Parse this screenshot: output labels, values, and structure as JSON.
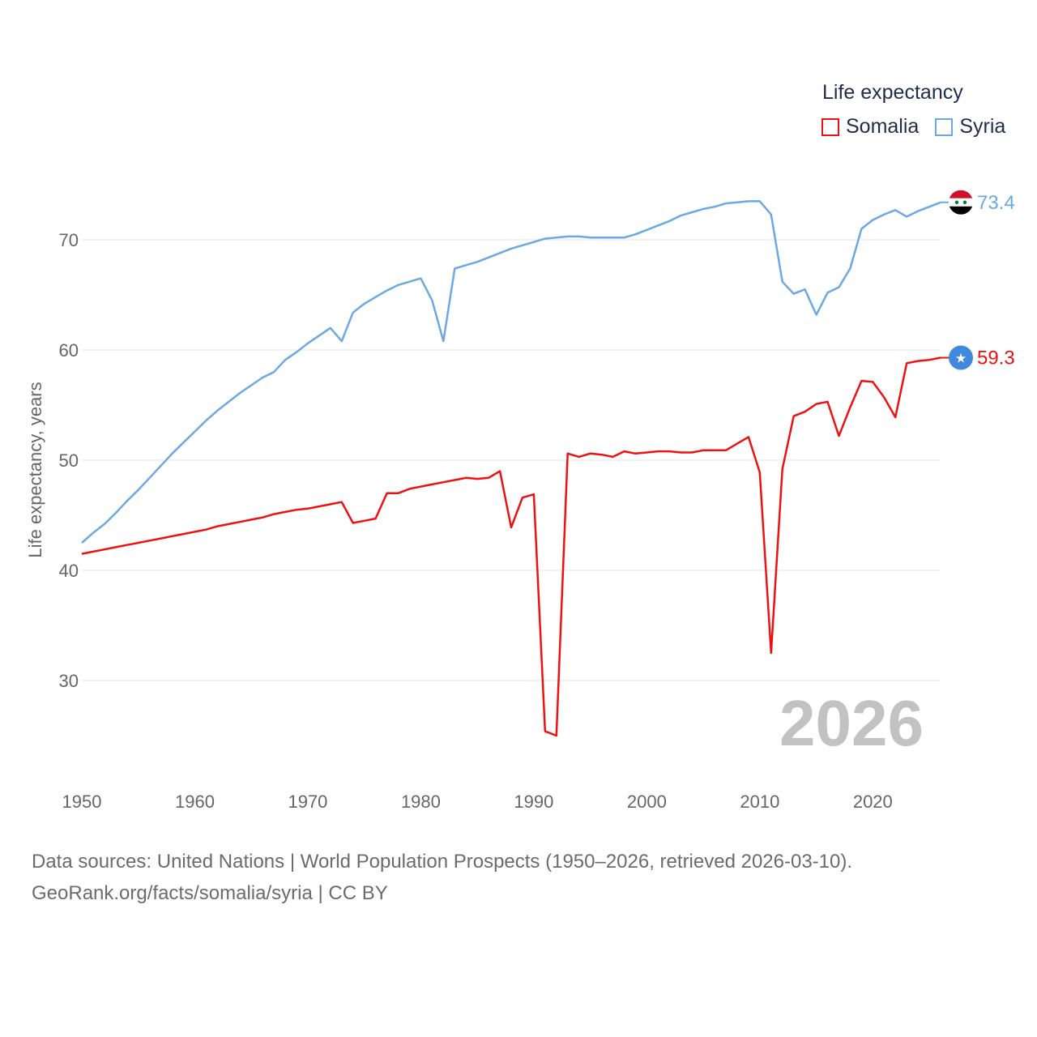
{
  "legend": {
    "title": "Life expectancy",
    "items": [
      {
        "name": "Somalia",
        "color": "#ee1111"
      },
      {
        "name": "Syria",
        "color": "#6aa9e4"
      }
    ]
  },
  "footer": {
    "line1": "Data sources: United Nations | World Population Prospects (1950–2026, retrieved 2026-03-10).",
    "line2": "GeoRank.org/facts/somalia/syria | CC BY"
  },
  "chart_data": {
    "type": "line",
    "title": "Life expectancy",
    "xlabel": "",
    "ylabel": "Life expectancy, years",
    "xlim": [
      1950,
      2026
    ],
    "ylim": [
      22,
      76
    ],
    "x_ticks": [
      1950,
      1960,
      1970,
      1980,
      1990,
      2000,
      2010,
      2020
    ],
    "y_ticks": [
      30,
      40,
      50,
      60,
      70
    ],
    "highlight_year": "2026",
    "x": [
      1950,
      1951,
      1952,
      1953,
      1954,
      1955,
      1956,
      1957,
      1958,
      1959,
      1960,
      1961,
      1962,
      1963,
      1964,
      1965,
      1966,
      1967,
      1968,
      1969,
      1970,
      1971,
      1972,
      1973,
      1974,
      1975,
      1976,
      1977,
      1978,
      1979,
      1980,
      1981,
      1982,
      1983,
      1984,
      1985,
      1986,
      1987,
      1988,
      1989,
      1990,
      1991,
      1992,
      1993,
      1994,
      1995,
      1996,
      1997,
      1998,
      1999,
      2000,
      2001,
      2002,
      2003,
      2004,
      2005,
      2006,
      2007,
      2008,
      2009,
      2010,
      2011,
      2012,
      2013,
      2014,
      2015,
      2016,
      2017,
      2018,
      2019,
      2020,
      2021,
      2022,
      2023,
      2024,
      2025,
      2026
    ],
    "series": [
      {
        "name": "Somalia",
        "color": "#ee1111",
        "end_label": "59.3",
        "values": [
          41.5,
          41.7,
          41.9,
          42.1,
          42.3,
          42.5,
          42.7,
          42.9,
          43.1,
          43.3,
          43.5,
          43.7,
          44.0,
          44.2,
          44.4,
          44.6,
          44.8,
          45.1,
          45.3,
          45.5,
          45.6,
          45.8,
          46.0,
          46.2,
          44.3,
          44.5,
          44.7,
          47.0,
          47.0,
          47.4,
          47.6,
          47.8,
          48.0,
          48.2,
          48.4,
          48.3,
          48.4,
          49.0,
          43.9,
          46.6,
          46.9,
          25.4,
          25.0,
          50.6,
          50.3,
          50.6,
          50.5,
          50.3,
          50.8,
          50.6,
          50.7,
          50.8,
          50.8,
          50.7,
          50.7,
          50.9,
          50.9,
          50.9,
          51.5,
          52.1,
          48.9,
          32.5,
          49.2,
          54.0,
          54.4,
          55.1,
          55.3,
          52.2,
          54.8,
          57.2,
          57.1,
          55.7,
          53.9,
          58.8,
          59.0,
          59.1,
          59.3
        ]
      },
      {
        "name": "Syria",
        "color": "#6aa9e4",
        "end_label": "73.4",
        "values": [
          42.5,
          43.4,
          44.2,
          45.2,
          46.3,
          47.3,
          48.4,
          49.5,
          50.6,
          51.6,
          52.6,
          53.6,
          54.5,
          55.3,
          56.1,
          56.8,
          57.5,
          58.0,
          59.1,
          59.8,
          60.6,
          61.3,
          62.0,
          60.8,
          63.4,
          64.2,
          64.8,
          65.4,
          65.9,
          66.2,
          66.5,
          64.5,
          60.8,
          67.4,
          67.7,
          68.0,
          68.4,
          68.8,
          69.2,
          69.5,
          69.8,
          70.1,
          70.2,
          70.3,
          70.3,
          70.2,
          70.2,
          70.2,
          70.2,
          70.5,
          70.9,
          71.3,
          71.7,
          72.2,
          72.5,
          72.8,
          73.0,
          73.3,
          73.4,
          73.5,
          73.5,
          72.3,
          66.2,
          65.1,
          65.5,
          63.2,
          65.2,
          65.7,
          67.4,
          71.0,
          71.8,
          72.3,
          72.7,
          72.1,
          72.6,
          73.0,
          73.4
        ]
      }
    ]
  }
}
